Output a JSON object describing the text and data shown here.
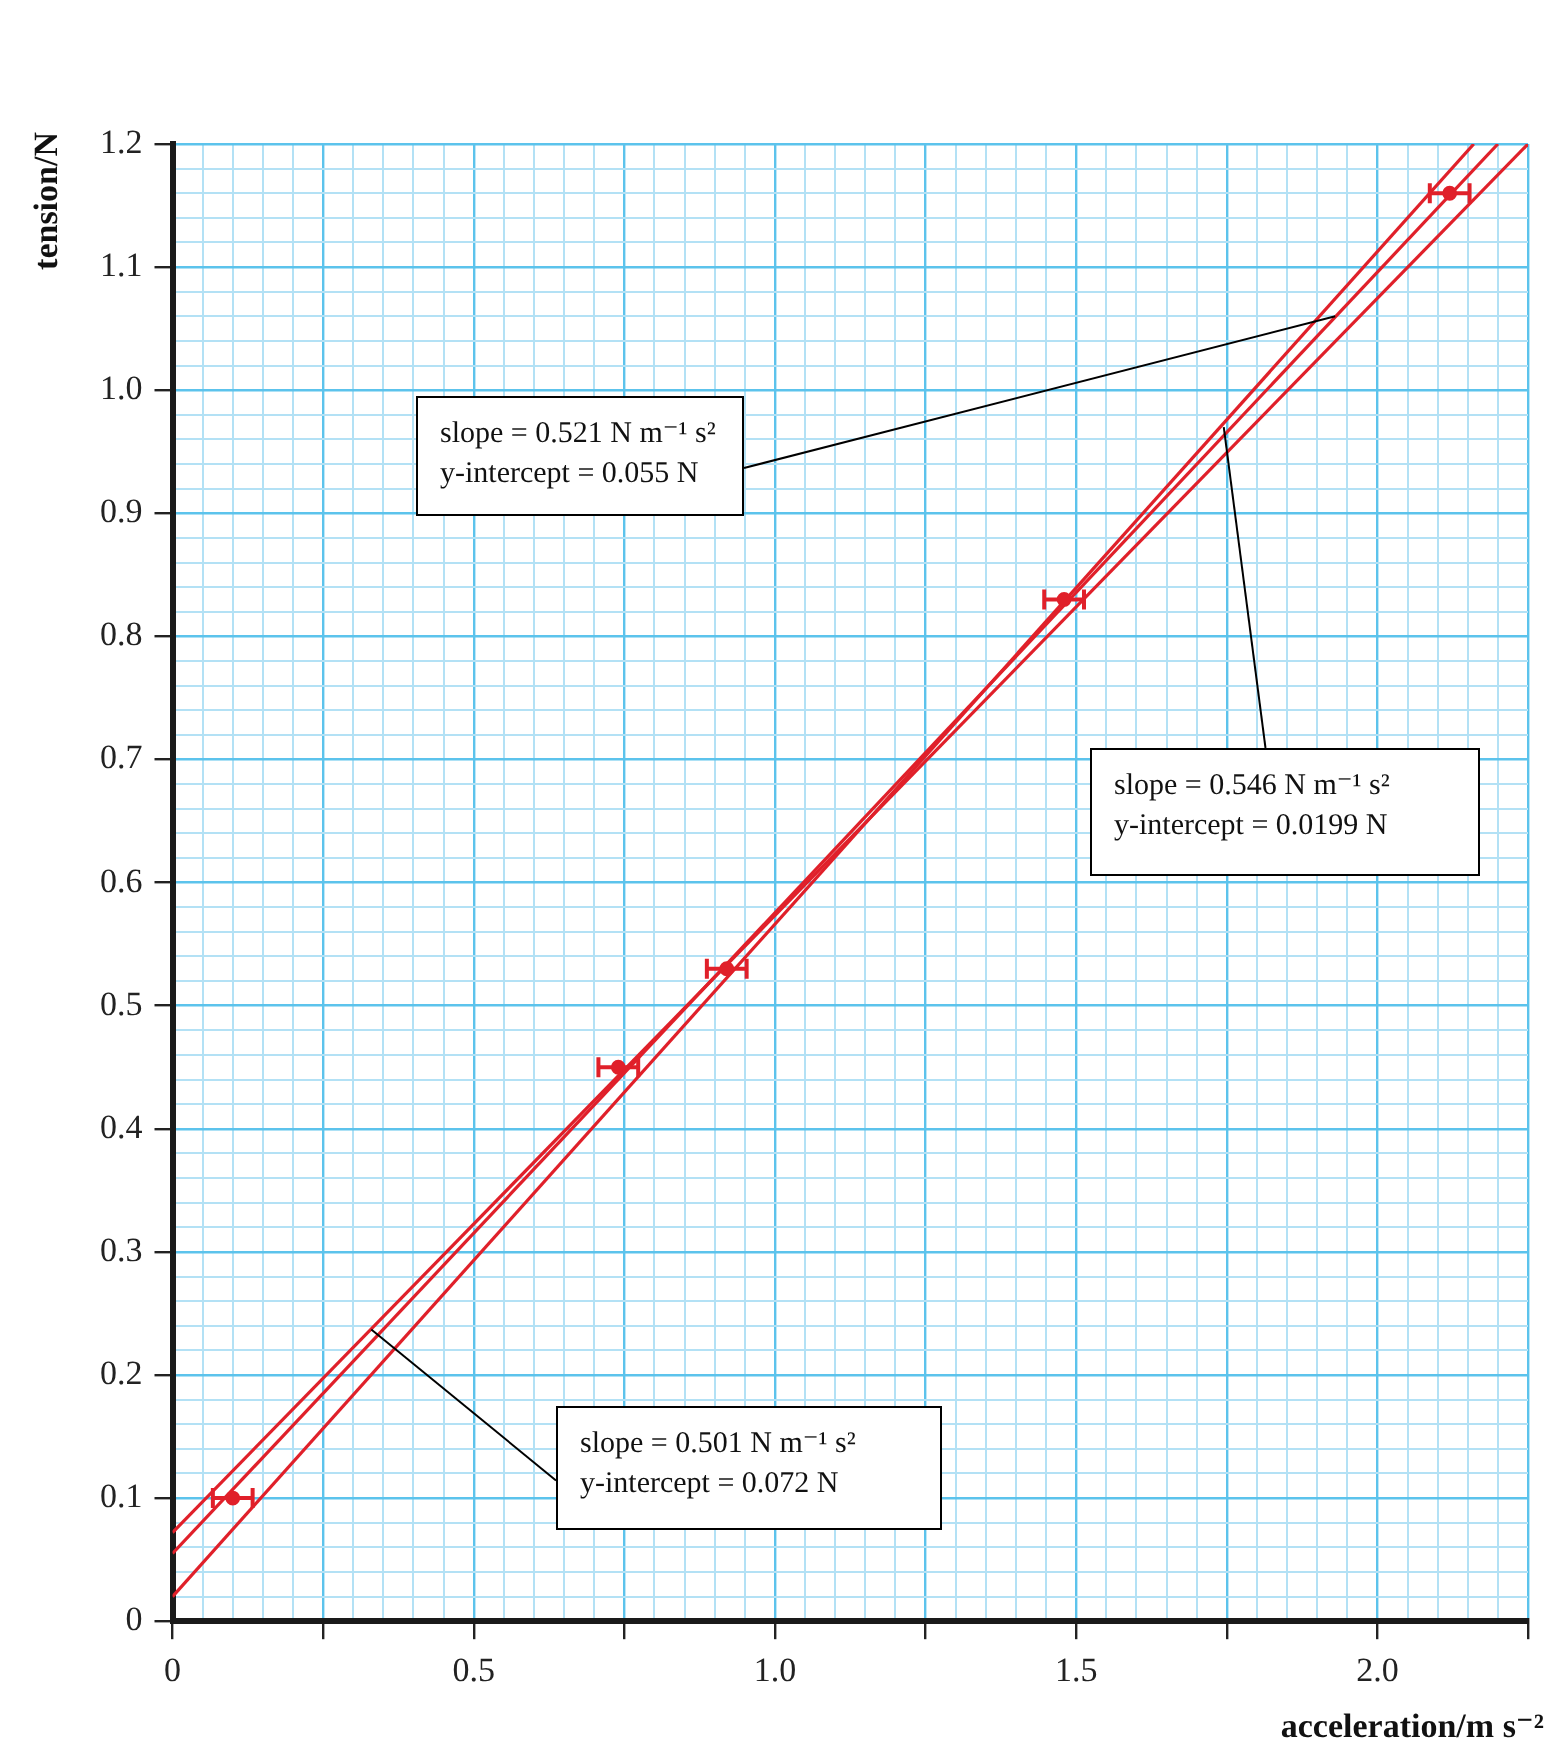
{
  "chart_data": {
    "type": "scatter",
    "xlabel": "acceleration/m s⁻²",
    "ylabel": "tension/N",
    "xlim": [
      0,
      2.25
    ],
    "ylim": [
      0,
      1.2
    ],
    "xticks": [
      0,
      {
        "value": 0.05,
        "label": null
      },
      {
        "value": 0.1,
        "label": null
      },
      {
        "value": 0.15,
        "label": null
      },
      {
        "value": 0.2,
        "label": null
      },
      {
        "value": 0.25,
        "label": null
      },
      {
        "value": 0.3,
        "label": null
      },
      {
        "value": 0.35,
        "label": null
      },
      {
        "value": 0.4,
        "label": null
      },
      {
        "value": 0.45,
        "label": null
      },
      0.5,
      {
        "value": 0.55,
        "label": null
      },
      {
        "value": 0.6,
        "label": null
      },
      {
        "value": 0.65,
        "label": null
      },
      {
        "value": 0.7,
        "label": null
      },
      {
        "value": 0.75,
        "label": null
      },
      {
        "value": 0.8,
        "label": null
      },
      {
        "value": 0.85,
        "label": null
      },
      {
        "value": 0.9,
        "label": null
      },
      {
        "value": 0.95,
        "label": null
      },
      {
        "value": 1,
        "label": "1.0"
      },
      {
        "value": 1.05,
        "label": null
      },
      {
        "value": 1.1,
        "label": null
      },
      {
        "value": 1.15,
        "label": null
      },
      {
        "value": 1.2,
        "label": null
      },
      {
        "value": 1.25,
        "label": null
      },
      {
        "value": 1.3,
        "label": null
      },
      {
        "value": 1.35,
        "label": null
      },
      {
        "value": 1.4,
        "label": null
      },
      {
        "value": 1.45,
        "label": null
      },
      1.5,
      {
        "value": 1.55,
        "label": null
      },
      {
        "value": 1.6,
        "label": null
      },
      {
        "value": 1.65,
        "label": null
      },
      {
        "value": 1.7,
        "label": null
      },
      {
        "value": 1.75,
        "label": null
      },
      {
        "value": 1.8,
        "label": null
      },
      {
        "value": 1.85,
        "label": null
      },
      {
        "value": 1.9,
        "label": null
      },
      {
        "value": 1.95,
        "label": null
      },
      {
        "value": 2,
        "label": "2.0"
      },
      {
        "value": 2.05,
        "label": null
      },
      {
        "value": 2.1,
        "label": null
      },
      {
        "value": 2.15,
        "label": null
      },
      {
        "value": 2.2,
        "label": null
      },
      {
        "value": 2.25,
        "label": null
      }
    ],
    "yticks": [
      0,
      {
        "value": 0.02,
        "label": null
      },
      {
        "value": 0.04,
        "label": null
      },
      {
        "value": 0.06,
        "label": null
      },
      {
        "value": 0.08,
        "label": null
      },
      0.1,
      {
        "value": 0.12,
        "label": null
      },
      {
        "value": 0.14,
        "label": null
      },
      {
        "value": 0.16,
        "label": null
      },
      {
        "value": 0.18,
        "label": null
      },
      0.2,
      {
        "value": 0.22,
        "label": null
      },
      {
        "value": 0.24,
        "label": null
      },
      {
        "value": 0.26,
        "label": null
      },
      {
        "value": 0.28,
        "label": null
      },
      0.3,
      {
        "value": 0.32,
        "label": null
      },
      {
        "value": 0.34,
        "label": null
      },
      {
        "value": 0.36,
        "label": null
      },
      {
        "value": 0.38,
        "label": null
      },
      0.4,
      {
        "value": 0.42,
        "label": null
      },
      {
        "value": 0.44,
        "label": null
      },
      {
        "value": 0.46,
        "label": null
      },
      {
        "value": 0.48,
        "label": null
      },
      0.5,
      {
        "value": 0.52,
        "label": null
      },
      {
        "value": 0.54,
        "label": null
      },
      {
        "value": 0.56,
        "label": null
      },
      {
        "value": 0.58,
        "label": null
      },
      0.6,
      {
        "value": 0.62,
        "label": null
      },
      {
        "value": 0.64,
        "label": null
      },
      {
        "value": 0.66,
        "label": null
      },
      {
        "value": 0.68,
        "label": null
      },
      0.7,
      {
        "value": 0.72,
        "label": null
      },
      {
        "value": 0.74,
        "label": null
      },
      {
        "value": 0.76,
        "label": null
      },
      {
        "value": 0.78,
        "label": null
      },
      0.8,
      {
        "value": 0.82,
        "label": null
      },
      {
        "value": 0.84,
        "label": null
      },
      {
        "value": 0.86,
        "label": null
      },
      {
        "value": 0.88,
        "label": null
      },
      0.9,
      {
        "value": 0.92,
        "label": null
      },
      {
        "value": 0.94,
        "label": null
      },
      {
        "value": 0.96,
        "label": null
      },
      {
        "value": 0.98,
        "label": null
      },
      {
        "value": 1,
        "label": "1.0"
      },
      {
        "value": 1.02,
        "label": null
      },
      {
        "value": 1.04,
        "label": null
      },
      {
        "value": 1.06,
        "label": null
      },
      {
        "value": 1.08,
        "label": null
      },
      1.1,
      {
        "value": 1.12,
        "label": null
      },
      {
        "value": 1.14,
        "label": null
      },
      {
        "value": 1.16,
        "label": null
      },
      {
        "value": 1.18,
        "label": null
      },
      1.2
    ],
    "grid": true,
    "legend": false,
    "series": [
      {
        "marker": "circle",
        "color": "#e0202a",
        "x": [
          0.1,
          0.74,
          0.92,
          1.48,
          2.12
        ],
        "values": [
          0.1,
          0.45,
          0.53,
          0.83,
          1.16
        ],
        "xerrors": [
          0.033,
          0.033,
          0.033,
          0.033,
          0.033
        ]
      },
      {
        "type": "line",
        "color": "#e0202a",
        "x": [
          0,
          2.16
        ],
        "values": [
          0.02,
          1.2
        ]
      },
      {
        "type": "line",
        "color": "#e0202a",
        "x": [
          0,
          2.2
        ],
        "values": [
          0.055,
          1.2
        ]
      },
      {
        "type": "line",
        "color": "#e0202a",
        "x": [
          0,
          2.25
        ],
        "values": [
          0.072,
          1.2
        ]
      }
    ],
    "annotations": [
      {
        "text": "slope = 0.521 N m⁻¹ s²\ny-intercept = 0.055 N",
        "x": 1.93,
        "y": 1.06
      },
      {
        "text": "slope = 0.546 N m⁻¹ s²\ny-intercept = 0.0199 N",
        "x": 1.745,
        "y": 0.97
      },
      {
        "text": "slope = 0.501 N m⁻¹ s²\ny-intercept = 0.072 N",
        "x": 0.33,
        "y": 0.237
      }
    ]
  }
}
